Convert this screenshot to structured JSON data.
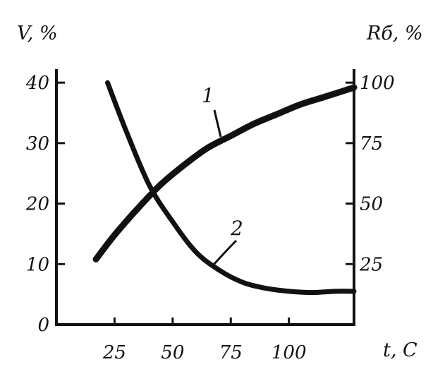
{
  "chart_data": {
    "type": "line",
    "title": "",
    "xlabel": "t, C",
    "ylabel_left": "V, %",
    "ylabel_right": "Rб, %",
    "x_ticks": [
      25,
      50,
      75,
      100
    ],
    "x_tick_labels": [
      "25",
      "50",
      "75",
      "100"
    ],
    "xlim": [
      0,
      128
    ],
    "y_left_ticks": [
      0,
      10,
      20,
      30,
      40
    ],
    "y_left_tick_labels": [
      "0",
      "10",
      "20",
      "30",
      "40"
    ],
    "ylim_left": [
      0,
      42
    ],
    "y_right_ticks": [
      25,
      50,
      75,
      100
    ],
    "y_right_tick_labels": [
      "25",
      "50",
      "75",
      "100"
    ],
    "ylim_right": [
      0,
      105
    ],
    "grid": false,
    "legend": "none",
    "series": [
      {
        "name": "1",
        "axis": "right",
        "x": [
          17,
          25,
          35,
          45,
          55,
          65,
          75,
          85,
          95,
          105,
          115,
          128
        ],
        "values": [
          27,
          37,
          48,
          58,
          66,
          73,
          78,
          83,
          87,
          91,
          94,
          98
        ]
      },
      {
        "name": "2",
        "axis": "left",
        "x": [
          22,
          30,
          40,
          50,
          60,
          70,
          80,
          90,
          100,
          110,
          120,
          128
        ],
        "values": [
          40,
          32,
          23,
          17,
          12,
          9,
          7,
          6,
          5.5,
          5.3,
          5.5,
          5.5
        ]
      }
    ],
    "series_labels": [
      "1",
      "2"
    ],
    "colors": {
      "axis": "#111111",
      "line": "#111111",
      "background": "#ffffff"
    }
  }
}
